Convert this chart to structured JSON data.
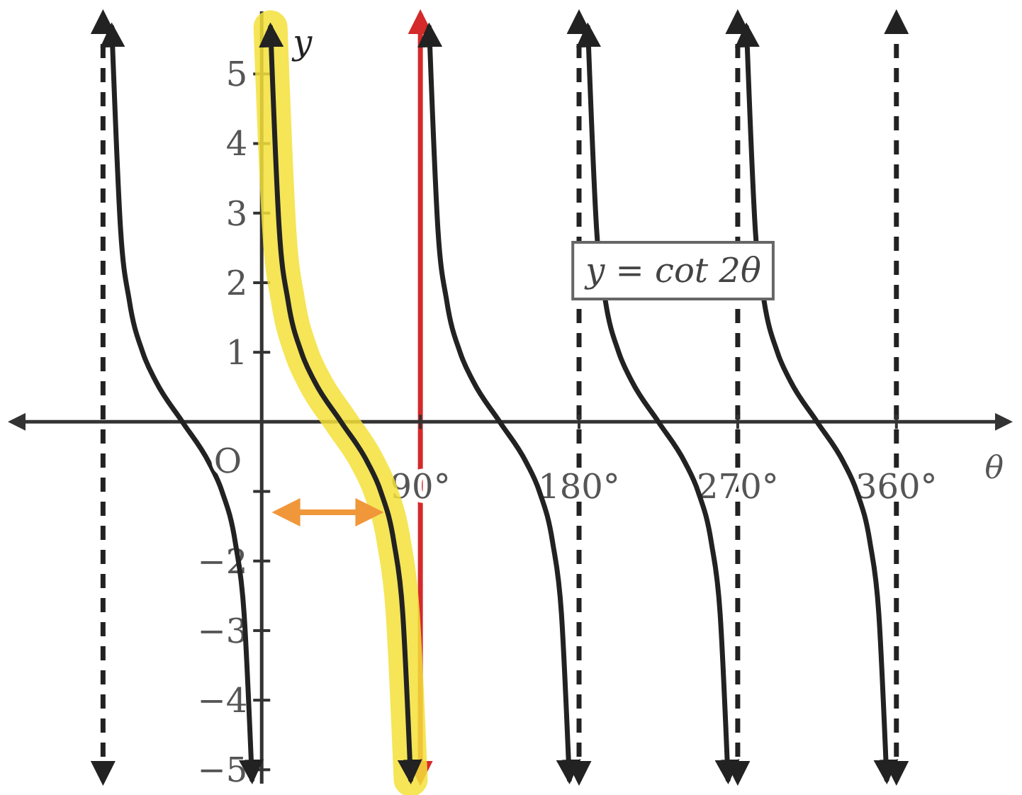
{
  "chart_data": {
    "type": "line",
    "xlabel": "θ",
    "ylabel": "y",
    "xlim": [
      -142,
      424
    ],
    "ylim": [
      -5.2,
      5.9
    ],
    "xticks": [
      {
        "value": 90,
        "label": "90°"
      },
      {
        "value": 180,
        "label": "180°"
      },
      {
        "value": 270,
        "label": "270°"
      },
      {
        "value": 360,
        "label": "360°"
      }
    ],
    "yticks": [
      {
        "value": -5,
        "label": "−5"
      },
      {
        "value": -4,
        "label": "−4"
      },
      {
        "value": -3,
        "label": "−3"
      },
      {
        "value": -2,
        "label": "−2"
      },
      {
        "value": -1,
        "label": null
      },
      1,
      2,
      3,
      4,
      5
    ],
    "marker": "none",
    "line_style": "solid",
    "series": [
      {
        "color": "#f3e03a",
        "x": [
          5,
          10,
          15,
          22.5,
          30,
          45,
          60,
          67.5,
          75,
          80,
          84.5
        ],
        "values": [
          5.67,
          2.75,
          1.73,
          1,
          0.58,
          0,
          -0.58,
          -1,
          -1.73,
          -2.75,
          -5.14
        ]
      },
      {
        "color": "#222222",
        "x": [
          -85,
          -80,
          -75,
          -67.5,
          -60,
          -45,
          -30,
          -22.5,
          -15,
          -10,
          -5.5
        ],
        "values": [
          5.67,
          2.75,
          1.73,
          1,
          0.58,
          0,
          -0.58,
          -1,
          -1.73,
          -2.75,
          -5.14
        ]
      },
      {
        "color": "#222222",
        "x": [
          5,
          10,
          15,
          22.5,
          30,
          45,
          60,
          67.5,
          75,
          80,
          84.5
        ],
        "values": [
          5.67,
          2.75,
          1.73,
          1,
          0.58,
          0,
          -0.58,
          -1,
          -1.73,
          -2.75,
          -5.14
        ]
      },
      {
        "color": "#222222",
        "x": [
          95,
          100,
          105,
          112.5,
          120,
          135,
          150,
          157.5,
          165,
          170,
          174.5
        ],
        "values": [
          5.67,
          2.75,
          1.73,
          1,
          0.58,
          0,
          -0.58,
          -1,
          -1.73,
          -2.75,
          -5.14
        ]
      },
      {
        "color": "#222222",
        "x": [
          185,
          190,
          195,
          202.5,
          210,
          225,
          240,
          247.5,
          255,
          260,
          264.5
        ],
        "values": [
          5.67,
          2.75,
          1.73,
          1,
          0.58,
          0,
          -0.58,
          -1,
          -1.73,
          -2.75,
          -5.14
        ]
      },
      {
        "color": "#222222",
        "x": [
          275,
          280,
          285,
          292.5,
          300,
          315,
          330,
          337.5,
          345,
          350,
          354.5
        ],
        "values": [
          5.67,
          2.75,
          1.73,
          1,
          0.58,
          0,
          -0.58,
          -1,
          -1.73,
          -2.75,
          -5.14
        ]
      }
    ],
    "ref_lines": [
      {
        "axis": "x",
        "value": -90,
        "color": "#222222",
        "line_style": "dashed"
      },
      {
        "axis": "x",
        "value": 90,
        "color": "#d42a2a",
        "line_style": "solid"
      },
      {
        "axis": "x",
        "value": 180,
        "color": "#222222",
        "line_style": "dashed"
      },
      {
        "axis": "x",
        "value": 270,
        "color": "#222222",
        "line_style": "dashed"
      },
      {
        "axis": "x",
        "value": 360,
        "color": "#222222",
        "line_style": "dashed"
      }
    ],
    "annotations": [
      "O",
      "y = cot 2θ"
    ]
  }
}
